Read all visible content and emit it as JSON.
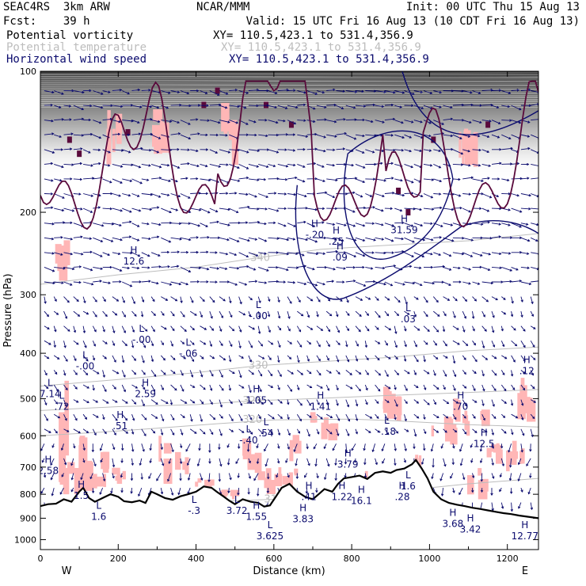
{
  "header": {
    "model_line1": "SEAC4RS  3km ARW",
    "model_line2": "Fcst:    39 h",
    "org": "NCAR/MMM",
    "init": "Init: 00 UTC Thu 15 Aug 13",
    "valid": "Valid: 15 UTC Fri 16 Aug 13 (10 CDT Fri 16 Aug 13)"
  },
  "legend": [
    {
      "label": "Potential vorticity",
      "xy": "XY= 110.5,423.1 to 531.4,356.9",
      "color": "#000000"
    },
    {
      "label": "Potential temperature",
      "xy": "XY= 110.5,423.1 to 531.4,356.9",
      "color": "#bdbdbd"
    },
    {
      "label": "Horizontal wind speed",
      "xy": "XY= 110.5,423.1 to 531.4,356.9",
      "color": "#0b0b6e"
    }
  ],
  "colors": {
    "pv_fill": "#ffb6b6",
    "pv_dark": "#5a0a3c",
    "theta": "#bdbdbd",
    "wind": "#0b0b6e",
    "terrain": "#000000"
  },
  "chart_data": {
    "type": "cross-section",
    "xlabel": "Distance (km)",
    "ylabel": "Pressure (hPa)",
    "xlim": [
      0,
      1280
    ],
    "ylim": [
      100,
      1050
    ],
    "y_log": true,
    "xticks": [
      0,
      200,
      400,
      600,
      800,
      1000,
      1200
    ],
    "yticks": [
      100,
      200,
      300,
      400,
      500,
      600,
      700,
      800,
      900,
      1000
    ],
    "end_labels": {
      "left": "W",
      "right": "E"
    },
    "terrain": [
      [
        0,
        848
      ],
      [
        20,
        840
      ],
      [
        40,
        838
      ],
      [
        60,
        820
      ],
      [
        80,
        830
      ],
      [
        100,
        790
      ],
      [
        110,
        775
      ],
      [
        125,
        815
      ],
      [
        140,
        830
      ],
      [
        160,
        815
      ],
      [
        180,
        800
      ],
      [
        200,
        810
      ],
      [
        215,
        828
      ],
      [
        235,
        832
      ],
      [
        255,
        825
      ],
      [
        270,
        835
      ],
      [
        285,
        790
      ],
      [
        300,
        800
      ],
      [
        320,
        815
      ],
      [
        340,
        822
      ],
      [
        360,
        808
      ],
      [
        380,
        800
      ],
      [
        400,
        790
      ],
      [
        420,
        770
      ],
      [
        440,
        775
      ],
      [
        455,
        792
      ],
      [
        470,
        808
      ],
      [
        485,
        825
      ],
      [
        500,
        840
      ],
      [
        520,
        820
      ],
      [
        540,
        830
      ],
      [
        560,
        835
      ],
      [
        575,
        850
      ],
      [
        590,
        845
      ],
      [
        605,
        810
      ],
      [
        620,
        775
      ],
      [
        640,
        760
      ],
      [
        660,
        790
      ],
      [
        680,
        810
      ],
      [
        700,
        820
      ],
      [
        715,
        800
      ],
      [
        730,
        780
      ],
      [
        750,
        790
      ],
      [
        765,
        760
      ],
      [
        780,
        740
      ],
      [
        800,
        735
      ],
      [
        820,
        730
      ],
      [
        840,
        742
      ],
      [
        860,
        720
      ],
      [
        880,
        715
      ],
      [
        900,
        720
      ],
      [
        915,
        710
      ],
      [
        935,
        705
      ],
      [
        955,
        690
      ],
      [
        965,
        676
      ],
      [
        980,
        705
      ],
      [
        995,
        740
      ],
      [
        1010,
        790
      ],
      [
        1030,
        820
      ],
      [
        1050,
        835
      ],
      [
        1070,
        842
      ],
      [
        1090,
        848
      ],
      [
        1110,
        855
      ],
      [
        1130,
        860
      ],
      [
        1150,
        866
      ],
      [
        1170,
        872
      ],
      [
        1190,
        878
      ],
      [
        1210,
        882
      ],
      [
        1230,
        888
      ],
      [
        1250,
        893
      ],
      [
        1280,
        900
      ]
    ],
    "theta_isentropes": [
      {
        "label": "340",
        "at": [
          565,
          250
        ],
        "points": [
          [
            0,
            285
          ],
          [
            200,
            272
          ],
          [
            400,
            262
          ],
          [
            560,
            250
          ],
          [
            720,
            240
          ],
          [
            900,
            235
          ],
          [
            1100,
            230
          ],
          [
            1280,
            222
          ]
        ]
      },
      {
        "label": "330",
        "at": [
          560,
          425
        ],
        "points": [
          [
            0,
            470
          ],
          [
            200,
            455
          ],
          [
            400,
            440
          ],
          [
            560,
            425
          ],
          [
            700,
            418
          ],
          [
            900,
            408
          ],
          [
            1100,
            395
          ],
          [
            1280,
            388
          ]
        ]
      },
      {
        "label": "325",
        "at": [
          545,
          505
        ],
        "points": [
          [
            0,
            530
          ],
          [
            200,
            520
          ],
          [
            400,
            515
          ],
          [
            550,
            505
          ],
          [
            700,
            500
          ],
          [
            900,
            492
          ],
          [
            1100,
            485
          ],
          [
            1280,
            478
          ]
        ]
      },
      {
        "label": "320",
        "at": [
          545,
          555
        ],
        "points": [
          [
            0,
            600
          ],
          [
            150,
            590
          ],
          [
            300,
            578
          ],
          [
            450,
            566
          ],
          [
            600,
            555
          ],
          [
            800,
            553
          ],
          [
            900,
            557
          ],
          [
            1100,
            568
          ],
          [
            1280,
            575
          ]
        ]
      },
      {
        "label": "310",
        "at": [
          600,
          820
        ],
        "points": [
          [
            0,
            880
          ],
          [
            200,
            855
          ],
          [
            400,
            832
          ],
          [
            600,
            820
          ],
          [
            800,
            810
          ],
          [
            900,
            790
          ],
          [
            1000,
            775
          ],
          [
            1100,
            760
          ],
          [
            1280,
            740
          ]
        ]
      }
    ],
    "extrema": [
      {
        "type": "H",
        "value": "12.6",
        "x": 240,
        "p": 245
      },
      {
        "type": "L",
        "value": "-.00",
        "x": 260,
        "p": 360
      },
      {
        "type": "L",
        "value": "-.06",
        "x": 380,
        "p": 385
      },
      {
        "type": "L",
        "value": "-.00",
        "x": 115,
        "p": 410
      },
      {
        "type": "L",
        "value": "-.00",
        "x": 560,
        "p": 320
      },
      {
        "type": "H",
        "value": "-.20",
        "x": 705,
        "p": 215
      },
      {
        "type": "H",
        "value": ".25",
        "x": 760,
        "p": 222
      },
      {
        "type": "H",
        "value": ".09",
        "x": 770,
        "p": 240
      },
      {
        "type": "H",
        "value": "31.59",
        "x": 935,
        "p": 210
      },
      {
        "type": "L",
        "value": ".03",
        "x": 945,
        "p": 325
      },
      {
        "type": "H",
        "value": ".12",
        "x": 1250,
        "p": 420
      },
      {
        "type": "L",
        "value": "7.14",
        "x": 25,
        "p": 470
      },
      {
        "type": "L",
        "value": ".72",
        "x": 55,
        "p": 500
      },
      {
        "type": "H",
        "value": "2.59",
        "x": 270,
        "p": 470
      },
      {
        "type": "H",
        "value": "1.05",
        "x": 555,
        "p": 485
      },
      {
        "type": "H",
        "value": "1.41",
        "x": 720,
        "p": 500
      },
      {
        "type": "H",
        "value": ".70",
        "x": 1080,
        "p": 500
      },
      {
        "type": "H",
        "value": ".51",
        "x": 205,
        "p": 550
      },
      {
        "type": "L",
        "value": "-.40",
        "x": 535,
        "p": 590
      },
      {
        "type": "L",
        "value": ".54",
        "x": 580,
        "p": 570
      },
      {
        "type": "L",
        "value": "-.18",
        "x": 890,
        "p": 565
      },
      {
        "type": "H",
        "value": "12.5",
        "x": 1140,
        "p": 600
      },
      {
        "type": "H",
        "value": "2.58",
        "x": 20,
        "p": 685
      },
      {
        "type": "H",
        "value": "3.79",
        "x": 790,
        "p": 665
      },
      {
        "type": "H",
        "value": "1.5",
        "x": 105,
        "p": 775
      },
      {
        "type": "L",
        "value": "1.6",
        "x": 945,
        "p": 740
      },
      {
        "type": "H",
        "value": ".41",
        "x": 690,
        "p": 780
      },
      {
        "type": "H",
        "value": "1.22",
        "x": 775,
        "p": 780
      },
      {
        "type": "H",
        "value": "16.1",
        "x": 825,
        "p": 795
      },
      {
        "type": "H",
        "value": ".28",
        "x": 930,
        "p": 780
      },
      {
        "type": "L",
        "value": "1.6",
        "x": 150,
        "p": 860
      },
      {
        "type": "L",
        "value": "-.3",
        "x": 395,
        "p": 835
      },
      {
        "type": "L",
        "value": "3.72",
        "x": 505,
        "p": 835
      },
      {
        "type": "H",
        "value": "1.55",
        "x": 555,
        "p": 860
      },
      {
        "type": "H",
        "value": "3.83",
        "x": 675,
        "p": 870
      },
      {
        "type": "H",
        "value": "3.68",
        "x": 1060,
        "p": 890
      },
      {
        "type": "H",
        "value": "3.42",
        "x": 1105,
        "p": 915
      },
      {
        "type": "H",
        "value": "12.77",
        "x": 1245,
        "p": 945
      },
      {
        "type": "L",
        "value": "3.625",
        "x": 590,
        "p": 945
      }
    ]
  }
}
